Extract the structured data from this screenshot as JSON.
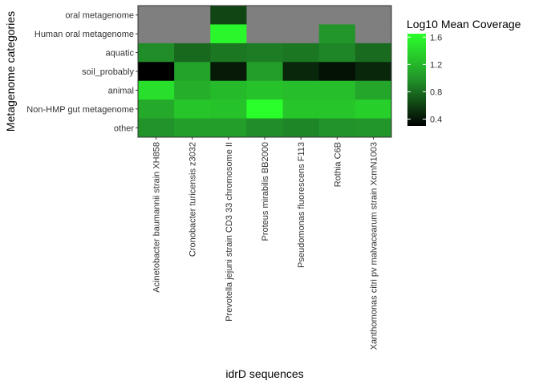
{
  "chart_data": {
    "type": "heatmap",
    "xlabel": "idrD sequences",
    "ylabel": "Metagenome categories",
    "x_categories": [
      "Acinetobacter baumannii strain XH858",
      "Cronobacter turicensis z3032",
      "Prevotella jejuni strain CD3 33 chromosome II",
      "Proteus mirabilis BB2000",
      "Pseudomonas fluorescens F113",
      "Rothia C6B",
      "Xanthomonas citri pv malvacearum strain XcmN1003"
    ],
    "y_categories": [
      "oral metagenome",
      "Human oral metagenome",
      "aquatic",
      "soil_probably",
      "animal",
      "Non-HMP gut metagenome",
      "other"
    ],
    "values": [
      [
        null,
        null,
        0.62,
        null,
        null,
        null,
        null
      ],
      [
        null,
        null,
        1.6,
        null,
        null,
        1.0,
        null
      ],
      [
        0.95,
        0.78,
        0.85,
        0.88,
        0.85,
        0.92,
        0.8
      ],
      [
        0.2,
        1.08,
        0.42,
        1.05,
        0.48,
        0.38,
        0.48
      ],
      [
        1.45,
        1.15,
        1.22,
        1.27,
        1.25,
        1.25,
        1.1
      ],
      [
        1.12,
        1.3,
        1.27,
        1.7,
        1.3,
        1.3,
        1.35
      ],
      [
        0.98,
        1.05,
        1.05,
        0.95,
        0.92,
        0.98,
        1.0
      ]
    ],
    "missing_color": "#7f7f7f",
    "colorscale": {
      "low": "#000000",
      "mid": "#22922a",
      "high": "#2bff2b",
      "min": 0.3,
      "max": 1.65
    },
    "legend": {
      "title": "Log10 Mean Coverage",
      "ticks": [
        0.4,
        0.8,
        1.2,
        1.6
      ],
      "position": "right"
    },
    "grid": false
  }
}
